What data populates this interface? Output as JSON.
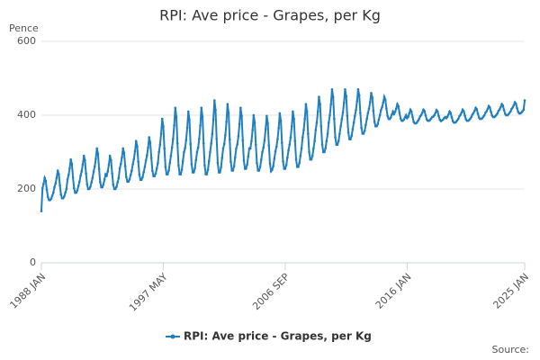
{
  "chart_data": {
    "type": "line",
    "title": "RPI: Ave price - Grapes, per Kg",
    "y_label": "Pence",
    "source": "Source:",
    "legend": "bottom",
    "grid": true,
    "ylim": [
      0,
      600
    ],
    "yticks": [
      0,
      200,
      400,
      600
    ],
    "categories": [
      "1988 JAN",
      null,
      null,
      null,
      null,
      null,
      null,
      null,
      null,
      null,
      null,
      null,
      null,
      null,
      null,
      null,
      null,
      null,
      null,
      null,
      null,
      null,
      null,
      null,
      null,
      null,
      null,
      null,
      null,
      null,
      null,
      null,
      null,
      null,
      null,
      null,
      null,
      null,
      null,
      null,
      null,
      null,
      null,
      null,
      null,
      null,
      null,
      null,
      null,
      null,
      null,
      null,
      null,
      null,
      null,
      null,
      null,
      null,
      null,
      null,
      null,
      null,
      null,
      null,
      null,
      null,
      null,
      null,
      null,
      null,
      null,
      null,
      null,
      null,
      null,
      null,
      null,
      null,
      null,
      null,
      null,
      null,
      null,
      null,
      null,
      null,
      null,
      null,
      null,
      null,
      null,
      null,
      null,
      null,
      null,
      null,
      null,
      null,
      null,
      null,
      null,
      null,
      null,
      null,
      null,
      null,
      null,
      null,
      null,
      null,
      null,
      null,
      "1997 MAY",
      null,
      null,
      null,
      null,
      null,
      null,
      null,
      null,
      null,
      null,
      null,
      null,
      null,
      null,
      null,
      null,
      null,
      null,
      null,
      null,
      null,
      null,
      null,
      null,
      null,
      null,
      null,
      null,
      null,
      null,
      null,
      null,
      null,
      null,
      null,
      null,
      null,
      null,
      null,
      null,
      null,
      null,
      null,
      null,
      null,
      null,
      null,
      null,
      null,
      null,
      null,
      null,
      null,
      null,
      null,
      null,
      null,
      null,
      null,
      null,
      null,
      null,
      null,
      null,
      null,
      null,
      null,
      null,
      null,
      null,
      null,
      null,
      null,
      null,
      null,
      null,
      null,
      null,
      null,
      null,
      null,
      null,
      null,
      null,
      null,
      null,
      null,
      null,
      null,
      null,
      null,
      null,
      null,
      null,
      null,
      null,
      null,
      null,
      null,
      null,
      null,
      null,
      null,
      null,
      null,
      null,
      null,
      null,
      null,
      null,
      null,
      "2006 SEP",
      null,
      null,
      null,
      null,
      null,
      null,
      null,
      null,
      null,
      null,
      null,
      null,
      null,
      null,
      null,
      null,
      null,
      null,
      null,
      null,
      null,
      null,
      null,
      null,
      null,
      null,
      null,
      null,
      null,
      null,
      null,
      null,
      null,
      null,
      null,
      null,
      null,
      null,
      null,
      null,
      null,
      null,
      null,
      null,
      null,
      null,
      null,
      null,
      null,
      null,
      null,
      null,
      null,
      null,
      null,
      null,
      null,
      null,
      null,
      null,
      null,
      null,
      null,
      null,
      null,
      null,
      null,
      null,
      null,
      null,
      null,
      null,
      null,
      null,
      null,
      null,
      null,
      null,
      null,
      null,
      null,
      null,
      null,
      null,
      null,
      null,
      null,
      null,
      null,
      null,
      null,
      null,
      null,
      null,
      null,
      null,
      null,
      null,
      null,
      null,
      null,
      null,
      null,
      null,
      null,
      null,
      null,
      null,
      null,
      null,
      null,
      "2016 JAN",
      null,
      null,
      null,
      null,
      null,
      null,
      null,
      null,
      null,
      null,
      null,
      null,
      null,
      null,
      null,
      null,
      null,
      null,
      null,
      null,
      null,
      null,
      null,
      null,
      null,
      null,
      null,
      null,
      null,
      null,
      null,
      null,
      null,
      null,
      null,
      null,
      null,
      null,
      null,
      null,
      null,
      null,
      null,
      null,
      null,
      null,
      null,
      null,
      null,
      null,
      null,
      null,
      null,
      null,
      null,
      null,
      null,
      null,
      null,
      null,
      null,
      null,
      null,
      null,
      null,
      null,
      null,
      null,
      null,
      null,
      null,
      null,
      null,
      null,
      null,
      null,
      null,
      null,
      null,
      null,
      null,
      null,
      null,
      null,
      null,
      null,
      null,
      null,
      null,
      null,
      null,
      null,
      null,
      null,
      null,
      null,
      null,
      null,
      null,
      null,
      null,
      null,
      null,
      null,
      null,
      null,
      null,
      "2025 JAN"
    ],
    "series": [
      {
        "name": "RPI: Ave price - Grapes, per Kg",
        "color": "#1f7fc0",
        "values": [
          140,
          202,
          214,
          230,
          222,
          198,
          178,
          170,
          170,
          174,
          182,
          190,
          205,
          215,
          230,
          250,
          240,
          210,
          185,
          175,
          175,
          180,
          190,
          200,
          226,
          238,
          256,
          280,
          268,
          232,
          202,
          190,
          190,
          196,
          208,
          220,
          236,
          248,
          266,
          290,
          278,
          242,
          212,
          200,
          200,
          206,
          218,
          230,
          247,
          261,
          282,
          310,
          296,
          254,
          219,
          205,
          205,
          212,
          226,
          240,
          236,
          248,
          266,
          290,
          278,
          242,
          212,
          200,
          200,
          206,
          218,
          230,
          256,
          268,
          286,
          310,
          298,
          262,
          232,
          220,
          220,
          226,
          238,
          250,
          267,
          281,
          302,
          330,
          316,
          274,
          239,
          225,
          225,
          232,
          246,
          260,
          277,
          291,
          312,
          340,
          326,
          284,
          249,
          235,
          235,
          242,
          256,
          270,
          300,
          320,
          350,
          390,
          370,
          310,
          260,
          240,
          240,
          250,
          270,
          290,
          312,
          336,
          372,
          420,
          396,
          324,
          264,
          240,
          240,
          252,
          276,
          300,
          311,
          333,
          366,
          410,
          388,
          322,
          267,
          245,
          245,
          256,
          278,
          300,
          312,
          336,
          372,
          420,
          396,
          324,
          264,
          240,
          240,
          252,
          276,
          300,
          323,
          349,
          388,
          440,
          414,
          336,
          271,
          245,
          245,
          258,
          284,
          310,
          322,
          346,
          382,
          430,
          406,
          334,
          274,
          250,
          250,
          262,
          286,
          310,
          321,
          343,
          376,
          420,
          398,
          332,
          277,
          255,
          255,
          266,
          288,
          310,
          310,
          330,
          360,
          400,
          380,
          320,
          270,
          250,
          250,
          260,
          280,
          300,
          312,
          332,
          362,
          398,
          378,
          318,
          268,
          248,
          252,
          262,
          282,
          302,
          315,
          335,
          365,
          405,
          385,
          325,
          275,
          255,
          255,
          265,
          285,
          305,
          320,
          340,
          370,
          410,
          390,
          330,
          280,
          260,
          260,
          270,
          290,
          310,
          340,
          360,
          390,
          430,
          410,
          350,
          300,
          280,
          280,
          290,
          310,
          330,
          360,
          380,
          410,
          450,
          430,
          370,
          320,
          300,
          300,
          310,
          330,
          350,
          380,
          400,
          430,
          470,
          450,
          390,
          340,
          320,
          320,
          330,
          350,
          370,
          389,
          407,
          434,
          470,
          452,
          398,
          353,
          335,
          335,
          344,
          362,
          380,
          398,
          414,
          438,
          470,
          454,
          406,
          366,
          350,
          350,
          358,
          374,
          390,
          406,
          418,
          436,
          460,
          448,
          412,
          382,
          370,
          370,
          376,
          388,
          400,
          414,
          422,
          434,
          450,
          442,
          418,
          398,
          390,
          390,
          394,
          402,
          410,
          403,
          409,
          418,
          430,
          424,
          406,
          391,
          385,
          385,
          388,
          394,
          400,
          392,
          396,
          405,
          415,
          410,
          395,
          382,
          378,
          378,
          380,
          385,
          390,
          397,
          401,
          407,
          415,
          411,
          399,
          389,
          385,
          385,
          387,
          391,
          395,
          396,
          400,
          406,
          414,
          410,
          398,
          388,
          384,
          386,
          388,
          392,
          395,
          392,
          396,
          402,
          410,
          406,
          394,
          384,
          380,
          380,
          382,
          386,
          390,
          397,
          401,
          407,
          415,
          411,
          399,
          389,
          385,
          385,
          387,
          391,
          395,
          402,
          406,
          412,
          420,
          416,
          404,
          394,
          390,
          390,
          392,
          396,
          400,
          407,
          411,
          417,
          425,
          421,
          409,
          399,
          395,
          395,
          397,
          401,
          405,
          412,
          416,
          422,
          430,
          426,
          414,
          404,
          400,
          400,
          402,
          406,
          410,
          417,
          421,
          427,
          435,
          431,
          419,
          409,
          405,
          405,
          407,
          411,
          415,
          440
        ]
      }
    ]
  }
}
